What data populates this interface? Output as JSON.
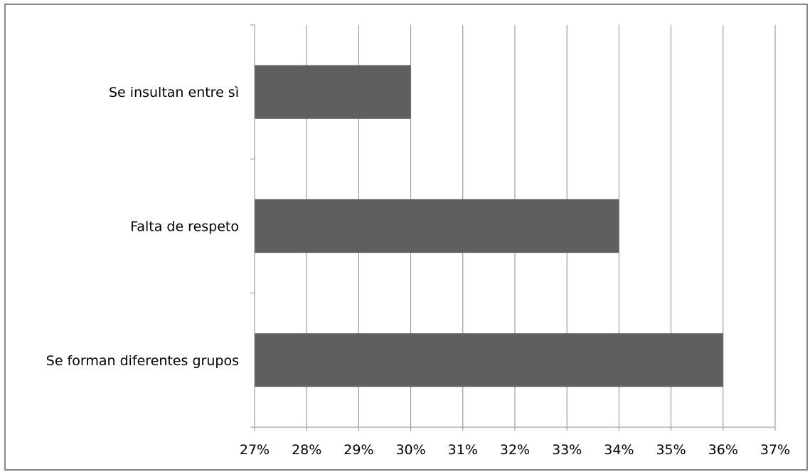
{
  "chart_data": {
    "type": "bar",
    "orientation": "horizontal",
    "categories": [
      "Se insultan entre sì",
      "Falta de respeto",
      "Se forman diferentes grupos"
    ],
    "values": [
      30,
      34,
      36
    ],
    "unit": "%",
    "xlim": [
      27,
      37
    ],
    "x_ticks": [
      "27%",
      "28%",
      "29%",
      "30%",
      "31%",
      "32%",
      "33%",
      "34%",
      "35%",
      "36%",
      "37%"
    ],
    "grid": "vertical",
    "legend": "none",
    "colors": {
      "bar": "#5f5f5f",
      "grid": "#8c8c8c",
      "axis": "#8c8c8c"
    }
  }
}
